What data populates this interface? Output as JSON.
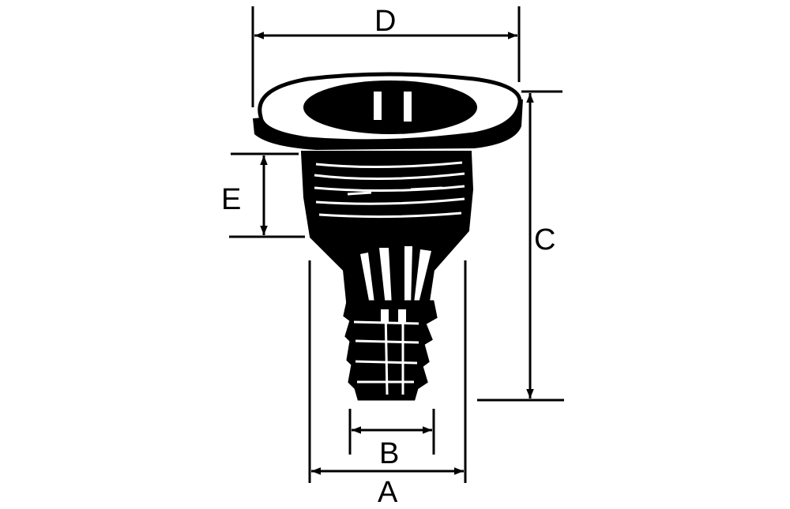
{
  "diagram": {
    "labels": {
      "A": "A",
      "B": "B",
      "C": "C",
      "D": "D",
      "E": "E"
    },
    "colors": {
      "ink": "#000000",
      "paper": "#ffffff"
    }
  }
}
